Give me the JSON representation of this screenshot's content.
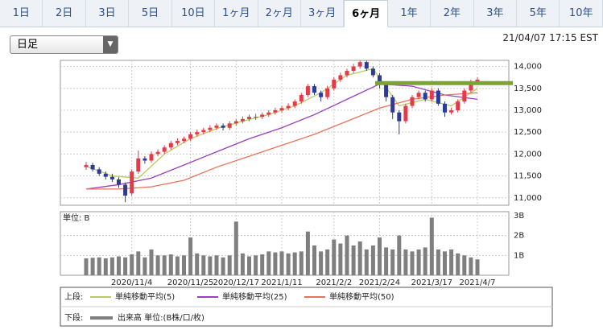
{
  "tabs": [
    "1日",
    "2日",
    "3日",
    "5日",
    "10日",
    "1ヶ月",
    "2ヶ月",
    "3ヶ月",
    "6ヶ月",
    "1年",
    "2年",
    "3年",
    "5年",
    "10年"
  ],
  "active_tab": 8,
  "timeframe": "日足",
  "timestamp": "21/04/07 17:15 EST",
  "chart_data": {
    "type": "candlestick",
    "categories": [
      null,
      null,
      null,
      null,
      null,
      null,
      null,
      "2020/11/4",
      null,
      null,
      null,
      null,
      null,
      null,
      null,
      null,
      "2020/11/25",
      null,
      null,
      null,
      null,
      null,
      null,
      "2020/12/17",
      null,
      null,
      null,
      null,
      null,
      null,
      "2021/1/11",
      null,
      null,
      null,
      null,
      null,
      null,
      null,
      "2021/2/2",
      null,
      null,
      null,
      null,
      null,
      null,
      "2021/2/24",
      null,
      null,
      null,
      null,
      null,
      null,
      null,
      "2021/3/17",
      null,
      null,
      null,
      null,
      null,
      null,
      "2021/4/7"
    ],
    "open": [
      11700,
      11750,
      11650,
      11550,
      11480,
      11420,
      11300,
      11100,
      11600,
      11900,
      11850,
      12000,
      12050,
      12150,
      12250,
      12300,
      12350,
      12450,
      12500,
      12550,
      12600,
      12650,
      12600,
      12700,
      12750,
      12800,
      12850,
      12850,
      12900,
      12950,
      13000,
      13050,
      13100,
      13200,
      13350,
      13550,
      13400,
      13300,
      13500,
      13700,
      13800,
      13900,
      14000,
      14100,
      13950,
      13800,
      13600,
      13300,
      12950,
      12750,
      13100,
      13300,
      13400,
      13250,
      13450,
      13150,
      12950,
      13000,
      13200,
      13450,
      13650
    ],
    "high": [
      11820,
      11800,
      11700,
      11600,
      11550,
      11470,
      11350,
      11650,
      12080,
      11950,
      12060,
      12110,
      12200,
      12300,
      12360,
      12400,
      12500,
      12560,
      12600,
      12660,
      12700,
      12700,
      12750,
      12800,
      12860,
      12900,
      12920,
      12950,
      13000,
      13060,
      13100,
      13160,
      13250,
      13400,
      13600,
      13600,
      13450,
      13560,
      13750,
      13860,
      13950,
      14060,
      14130,
      14130,
      14000,
      13850,
      13650,
      13350,
      13000,
      13150,
      13350,
      13450,
      13450,
      13500,
      13500,
      13200,
      13060,
      13250,
      13500,
      13700,
      13750
    ],
    "low": [
      11640,
      11600,
      11500,
      11420,
      11360,
      11230,
      10900,
      11050,
      11550,
      11780,
      11800,
      11950,
      12000,
      12100,
      12200,
      12250,
      12300,
      12400,
      12450,
      12500,
      12550,
      12540,
      12550,
      12650,
      12700,
      12750,
      12780,
      12800,
      12850,
      12900,
      12950,
      13000,
      13050,
      13150,
      13300,
      13350,
      13200,
      13250,
      13450,
      13650,
      13750,
      13850,
      13950,
      13900,
      13750,
      13500,
      13200,
      12800,
      12450,
      12700,
      13050,
      13250,
      13200,
      13200,
      13100,
      12850,
      12900,
      12950,
      13150,
      13400,
      13600
    ],
    "close": [
      11750,
      11650,
      11550,
      11480,
      11420,
      11300,
      11050,
      11600,
      11900,
      11850,
      12000,
      12050,
      12150,
      12250,
      12300,
      12350,
      12450,
      12500,
      12550,
      12600,
      12650,
      12600,
      12700,
      12750,
      12800,
      12850,
      12850,
      12900,
      12950,
      13000,
      13050,
      13100,
      13200,
      13350,
      13550,
      13400,
      13300,
      13500,
      13700,
      13800,
      13900,
      14000,
      14100,
      13950,
      13800,
      13600,
      13300,
      12950,
      12750,
      13100,
      13300,
      13400,
      13250,
      13450,
      13150,
      12950,
      13000,
      13200,
      13450,
      13650,
      13700
    ],
    "up_color": "#e23b4a",
    "down_color": "#2c3a9a",
    "ylim": [
      10830,
      14140
    ],
    "yticks": [
      {
        "value": 11000,
        "label": "11,000"
      },
      {
        "value": 11500,
        "label": "11,500"
      },
      {
        "value": 12000,
        "label": "12,000"
      },
      {
        "value": 12500,
        "label": "12,500"
      },
      {
        "value": 13000,
        "label": "13,000"
      },
      {
        "value": 13500,
        "label": "13,500"
      },
      {
        "value": 14000,
        "label": "14,000"
      }
    ],
    "grid": true,
    "price_line": {
      "value": 13620,
      "color": "#7ea23a"
    },
    "upper_label": "上段:",
    "lower_label": "下段:",
    "moving_averages": [
      {
        "name": "単純移動平均(5)",
        "color": "#b9cc63",
        "x": [
          0,
          4,
          8,
          12,
          16,
          20,
          24,
          28,
          32,
          36,
          40,
          44,
          48,
          52,
          56,
          60
        ],
        "values": [
          11720,
          11500,
          11450,
          12000,
          12350,
          12580,
          12750,
          12900,
          13100,
          13400,
          13800,
          13950,
          13100,
          13250,
          13100,
          13500
        ]
      },
      {
        "name": "単純移動平均(25)",
        "color": "#9a3fc2",
        "x": [
          0,
          5,
          10,
          15,
          20,
          25,
          30,
          35,
          40,
          45,
          50,
          55,
          60
        ],
        "values": [
          11200,
          11300,
          11450,
          11750,
          12050,
          12350,
          12600,
          12900,
          13250,
          13600,
          13550,
          13350,
          13250
        ]
      },
      {
        "name": "単純移動平均(50)",
        "color": "#e8735c",
        "x": [
          0,
          5,
          10,
          15,
          20,
          25,
          30,
          35,
          40,
          45,
          50,
          55,
          60
        ],
        "values": [
          11200,
          11200,
          11250,
          11400,
          11700,
          11950,
          12200,
          12450,
          12750,
          13050,
          13250,
          13350,
          13400
        ]
      }
    ],
    "volume": {
      "unit_label": "単位: B",
      "name": "出来高 単位:(B株/口/枚)",
      "color": "#7f7f7f",
      "values": [
        0.85,
        0.88,
        0.9,
        0.85,
        0.9,
        0.95,
        0.9,
        1.05,
        1.2,
        0.9,
        1.3,
        1.0,
        1.0,
        1.05,
        0.95,
        1.0,
        1.9,
        1.1,
        1.0,
        0.95,
        1.0,
        0.9,
        1.0,
        2.7,
        1.1,
        0.95,
        1.0,
        1.05,
        1.2,
        1.15,
        1.2,
        1.1,
        1.15,
        1.2,
        2.2,
        1.5,
        1.2,
        1.3,
        1.8,
        1.6,
        2.0,
        1.5,
        1.7,
        1.3,
        1.5,
        1.9,
        1.4,
        1.3,
        2.0,
        1.3,
        1.2,
        1.3,
        1.4,
        2.9,
        1.3,
        1.2,
        1.3,
        1.1,
        1.0,
        0.9,
        0.8
      ],
      "ylim": [
        0,
        3.2
      ],
      "yticks": [
        {
          "value": 1,
          "label": "1B"
        },
        {
          "value": 2,
          "label": "2B"
        },
        {
          "value": 3,
          "label": "3B"
        }
      ]
    }
  }
}
